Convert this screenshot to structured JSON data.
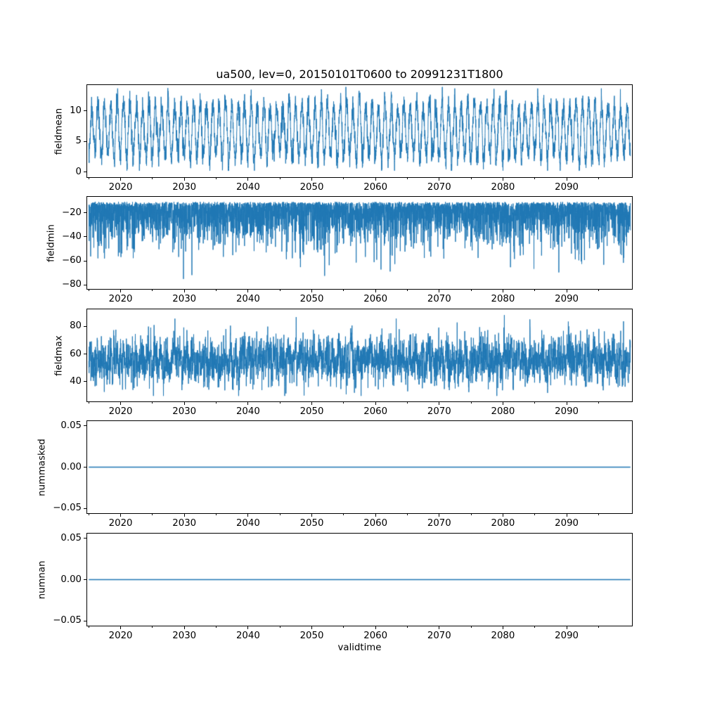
{
  "figure": {
    "title": "ua500, lev=0, 20150101T0600 to 20991231T1800",
    "xlabel": "validtime",
    "background_color": "#ffffff",
    "axis_color": "#000000",
    "line_color": "#1f77b4",
    "xlim": [
      2014.75,
      2100.25
    ],
    "x_range": [
      2015.0,
      2100.0
    ],
    "xticks": [
      {
        "v": 2020,
        "label": "2020"
      },
      {
        "v": 2030,
        "label": "2030"
      },
      {
        "v": 2040,
        "label": "2040"
      },
      {
        "v": 2050,
        "label": "2050"
      },
      {
        "v": 2060,
        "label": "2060"
      },
      {
        "v": 2070,
        "label": "2070"
      },
      {
        "v": 2080,
        "label": "2080"
      },
      {
        "v": 2090,
        "label": "2090"
      }
    ],
    "xminorticks": [
      2015,
      2025,
      2035,
      2045,
      2055,
      2065,
      2075,
      2085,
      2095
    ]
  },
  "chart_data": [
    {
      "type": "line",
      "ylabel": "fieldmean",
      "ylim": [
        -0.85,
        14.2
      ],
      "yticks": [
        {
          "v": 0,
          "label": "0"
        },
        {
          "v": 5,
          "label": "5"
        },
        {
          "v": 10,
          "label": "10"
        }
      ],
      "series": [
        {
          "name": "fieldmean",
          "color": "#1f77b4",
          "synth": {
            "kind": "seasonal",
            "samples": 5200,
            "seed": 7,
            "mean": 6.7,
            "seasonal_amp": 4.4,
            "amp_jitter": 0.3,
            "phase": 0.22,
            "noise_sd": 1.0,
            "clip": [
              0.2,
              13.9
            ]
          },
          "summary": {
            "description": "annual oscillation with synoptic noise",
            "approx_mean": 6.7,
            "annual_trough_range": [
              0.3,
              3.0
            ],
            "annual_peak_range": [
              10.0,
              13.7
            ],
            "period_years": 1
          }
        }
      ]
    },
    {
      "type": "line",
      "ylabel": "fieldmin",
      "ylim": [
        -83.5,
        -6.5
      ],
      "yticks": [
        {
          "v": -20,
          "label": "−20"
        },
        {
          "v": -40,
          "label": "−40"
        },
        {
          "v": -60,
          "label": "−60"
        },
        {
          "v": -80,
          "label": "−80"
        }
      ],
      "series": [
        {
          "name": "fieldmin",
          "color": "#1f77b4",
          "synth": {
            "kind": "spiky_down",
            "samples": 5200,
            "seed": 12,
            "base": -10.5,
            "spike_scale": 13,
            "tail_power": 1.25,
            "jitter": 1.5,
            "clip": [
              -81,
              -9.8
            ]
          },
          "summary": {
            "description": "dense band near top with frequent downward spikes",
            "dense_band": [
              -33,
              -11
            ],
            "spike_depth_range": [
              -80,
              -40
            ],
            "deepest": -81
          }
        }
      ]
    },
    {
      "type": "line",
      "ylabel": "fieldmax",
      "ylim": [
        25.5,
        92.5
      ],
      "yticks": [
        {
          "v": 40,
          "label": "40"
        },
        {
          "v": 60,
          "label": "60"
        },
        {
          "v": 80,
          "label": "80"
        }
      ],
      "series": [
        {
          "name": "fieldmax",
          "color": "#1f77b4",
          "synth": {
            "kind": "noisy_band",
            "samples": 5200,
            "seed": 3,
            "mean": 55.5,
            "seasonal_amp": 3.2,
            "noise_sd": 7.2,
            "spike_prob": 0.005,
            "spike_size": 14,
            "clip": [
              29.5,
              90.5
            ]
          },
          "summary": {
            "description": "noisy band with upward spikes",
            "dense_band": [
              38,
              72
            ],
            "peak_range": [
              80,
              90
            ],
            "low_range": [
              30,
              36
            ]
          }
        }
      ]
    },
    {
      "type": "line",
      "ylabel": "nummasked",
      "ylim": [
        -0.0557,
        0.0557
      ],
      "yticks": [
        {
          "v": 0.05,
          "label": "0.05"
        },
        {
          "v": 0,
          "label": "0.00"
        },
        {
          "v": -0.05,
          "label": "−0.05"
        }
      ],
      "series": [
        {
          "name": "nummasked",
          "color": "#1f77b4",
          "synth": {
            "kind": "flat",
            "samples": 2,
            "seed": 1,
            "value": 0,
            "clip": [
              0,
              0
            ]
          },
          "summary": {
            "description": "constant zero line",
            "constant": 0
          }
        }
      ]
    },
    {
      "type": "line",
      "ylabel": "numnan",
      "ylim": [
        -0.0557,
        0.0557
      ],
      "yticks": [
        {
          "v": 0.05,
          "label": "0.05"
        },
        {
          "v": 0,
          "label": "0.00"
        },
        {
          "v": -0.05,
          "label": "−0.05"
        }
      ],
      "series": [
        {
          "name": "numnan",
          "color": "#1f77b4",
          "synth": {
            "kind": "flat",
            "samples": 2,
            "seed": 2,
            "value": 0,
            "clip": [
              0,
              0
            ]
          },
          "summary": {
            "description": "constant zero line",
            "constant": 0
          }
        }
      ]
    }
  ]
}
